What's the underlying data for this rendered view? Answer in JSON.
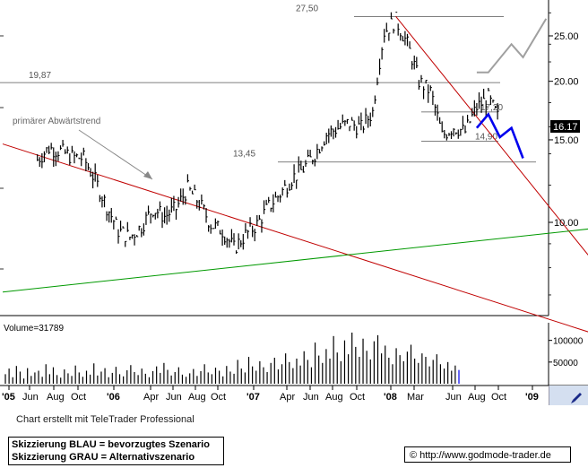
{
  "chart_data": [
    {
      "type": "line",
      "title": "",
      "scale": "log",
      "ylim": [
        7.0,
        30.0
      ],
      "y_ticks": [
        "25.00",
        "20.00",
        "15.00",
        "10.00"
      ],
      "y_tick_values": [
        25,
        20,
        15,
        10
      ],
      "x_tick_labels": [
        "'05",
        "Jun",
        "Aug",
        "Oct",
        "'06",
        "Apr",
        "Jun",
        "Aug",
        "Oct",
        "'07",
        "Apr",
        "Jun",
        "Aug",
        "Oct",
        "'08",
        "Mar",
        "Jun",
        "Aug",
        "Oct",
        "'09"
      ],
      "last_price_label": "16.17",
      "last_price": 16.17,
      "grid": false,
      "horizontal_levels": [
        {
          "label": "27,50",
          "value": 27.5
        },
        {
          "label": "19,87",
          "value": 19.87
        },
        {
          "label": "17,20",
          "value": 17.2
        },
        {
          "label": "14,90",
          "value": 14.9
        },
        {
          "label": "13,45",
          "value": 13.45
        }
      ],
      "annotation": "primärer Abwärtstrend",
      "price_series": {
        "name": "",
        "points": [
          [
            "2005-04",
            13.6
          ],
          [
            "2005-05",
            14.4
          ],
          [
            "2005-06",
            14.2
          ],
          [
            "2005-07",
            13.8
          ],
          [
            "2005-08",
            13.7
          ],
          [
            "2005-09",
            12.3
          ],
          [
            "2005-10",
            10.8
          ],
          [
            "2005-11",
            9.6
          ],
          [
            "2005-12",
            9.3
          ],
          [
            "2006-01",
            9.8
          ],
          [
            "2006-02",
            10.7
          ],
          [
            "2006-03",
            10.3
          ],
          [
            "2006-04",
            10.7
          ],
          [
            "2006-05",
            11.8
          ],
          [
            "2006-06",
            11.0
          ],
          [
            "2006-07",
            9.9
          ],
          [
            "2006-08",
            9.6
          ],
          [
            "2006-09",
            8.8
          ],
          [
            "2006-10",
            9.4
          ],
          [
            "2006-11",
            9.9
          ],
          [
            "2006-12",
            10.8
          ],
          [
            "2007-01",
            11.5
          ],
          [
            "2007-02",
            12.4
          ],
          [
            "2007-03",
            13.0
          ],
          [
            "2007-04",
            14.0
          ],
          [
            "2007-05",
            15.4
          ],
          [
            "2007-06",
            15.9
          ],
          [
            "2007-07",
            16.3
          ],
          [
            "2007-08",
            15.9
          ],
          [
            "2007-09",
            17.2
          ],
          [
            "2007-10",
            25.5
          ],
          [
            "2007-11",
            27.0
          ],
          [
            "2007-12",
            24.0
          ],
          [
            "2008-01",
            20.0
          ],
          [
            "2008-02",
            19.0
          ],
          [
            "2008-03",
            15.3
          ],
          [
            "2008-04",
            16.0
          ],
          [
            "2008-05",
            15.6
          ],
          [
            "2008-06",
            17.6
          ],
          [
            "2008-07",
            18.4
          ],
          [
            "2008-08",
            16.4
          ]
        ]
      },
      "trendlines": [
        {
          "color": "#c00000",
          "from": [
            "2005-01",
            14.7
          ],
          "to": [
            "2009-04",
            5.8
          ]
        },
        {
          "color": "#c00000",
          "from": [
            "2007-11",
            27.5
          ],
          "to": [
            "2009-04",
            8.3
          ]
        },
        {
          "color": "#009900",
          "from": [
            "2005-01",
            7.1
          ],
          "to": [
            "2009-04",
            9.7
          ]
        }
      ],
      "scenarios": [
        {
          "legend": "Skizzierung BLAU = bevorzugtes Szenario",
          "color": "#0000ee",
          "points": [
            [
              "2008-06",
              15.9
            ],
            [
              "2008-07",
              17.0
            ],
            [
              "2008-08",
              15.2
            ],
            [
              "2008-09",
              15.9
            ],
            [
              "2008-10",
              13.7
            ]
          ]
        },
        {
          "legend": "Skizzierung GRAU = Alternativszenario",
          "color": "#a0a0a0",
          "points": [
            [
              "2008-06",
              20.9
            ],
            [
              "2008-07",
              20.9
            ],
            [
              "2008-09",
              24.0
            ],
            [
              "2008-10",
              22.5
            ],
            [
              "2008-12",
              27.2
            ]
          ]
        }
      ]
    },
    {
      "type": "bar",
      "title": "Volume=31789",
      "y_ticks": [
        "100000",
        "50000"
      ],
      "y_tick_values": [
        100000,
        50000
      ],
      "values": [
        22000,
        35000,
        15000,
        41000,
        28000,
        12000,
        36000,
        18000,
        26000,
        30000,
        16000,
        45000,
        22000,
        38000,
        20000,
        14000,
        33000,
        24000,
        18000,
        42000,
        26000,
        16000,
        30000,
        21000,
        47000,
        19000,
        28000,
        36000,
        15000,
        25000,
        39000,
        22000,
        17000,
        31000,
        43000,
        27000,
        20000,
        35000,
        23000,
        15000,
        29000,
        40000,
        25000,
        48000,
        32000,
        19000,
        27000,
        38000,
        21000,
        16000,
        24000,
        34000,
        18000,
        29000,
        45000,
        26000,
        22000,
        37000,
        30000,
        17000,
        41000,
        28000,
        23000,
        55000,
        35000,
        26000,
        62000,
        40000,
        30000,
        52000,
        38000,
        27000,
        48000,
        60000,
        33000,
        45000,
        70000,
        50000,
        36000,
        58000,
        42000,
        75000,
        55000,
        38000,
        95000,
        65000,
        48000,
        80000,
        58000,
        110000,
        72000,
        52000,
        100000,
        68000,
        118000,
        85000,
        62000,
        104000,
        76000,
        56000,
        98000,
        112000,
        70000,
        88000,
        60000,
        45000,
        82000,
        66000,
        52000,
        74000,
        90000,
        58000,
        48000,
        70000,
        62000,
        40000,
        55000,
        68000,
        45000,
        35000,
        50000,
        30000,
        42000,
        31789
      ]
    }
  ],
  "volume_label": "Volume=31789",
  "credit": "Chart erstellt mit TeleTrader Professional",
  "legend": {
    "blue": "Skizzierung BLAU = bevorzugtes Szenario",
    "grey": "Skizzierung GRAU = Alternativszenario"
  },
  "url": "© http://www.godmode-trader.de",
  "colors": {
    "price": "#000000",
    "trend_red": "#c00000",
    "trend_green": "#009900",
    "scenario_blue": "#0000ee",
    "scenario_grey": "#a0a0a0",
    "level_line": "#555555",
    "annotation_arrow": "#888888",
    "last_price_bg": "#000000",
    "corner_button": "#d4dff0"
  }
}
